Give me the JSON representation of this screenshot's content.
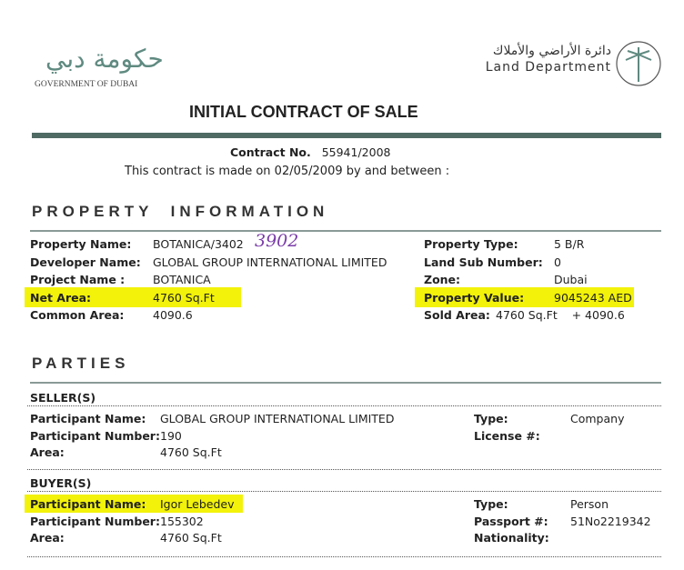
{
  "header": {
    "left_logo_text": "GOVERNMENT OF DUBAI",
    "left_logo_arabic": "حكومة دبي",
    "right_logo_arabic": "دائرة الأراضي والأملاك",
    "right_logo_text": "Land Department",
    "title": "INITIAL CONTRACT OF SALE"
  },
  "contract": {
    "no_label": "Contract No.",
    "no_value": "55941/2008",
    "intro": "This contract is made on 02/05/2009 by and between :"
  },
  "property": {
    "heading": "PROPERTY  INFORMATION",
    "left": [
      {
        "label": "Property Name:",
        "value": "BOTANICA/3402"
      },
      {
        "label": "Developer Name:",
        "value": "GLOBAL GROUP INTERNATIONAL LIMITED"
      },
      {
        "label": "Project Name :",
        "value": "BOTANICA"
      },
      {
        "label": "Net Area:",
        "value": "4760 Sq.Ft"
      },
      {
        "label": "Common Area:",
        "value": "4090.6"
      }
    ],
    "right": [
      {
        "label": "Property Type:",
        "value": "5 B/R"
      },
      {
        "label": "Land Sub Number:",
        "value": "0"
      },
      {
        "label": "Zone:",
        "value": "Dubai"
      },
      {
        "label": "Property Value:",
        "value": "9045243 AED"
      },
      {
        "label": "Sold Area:",
        "value": "4760 Sq.Ft    + 4090.6"
      }
    ],
    "handwritten_note": "3902"
  },
  "parties": {
    "heading": "PARTIES",
    "seller": {
      "heading": "SELLER(S)",
      "left": [
        {
          "label": "Participant Name:",
          "value": "GLOBAL GROUP INTERNATIONAL LIMITED"
        },
        {
          "label": "Participant Number:",
          "value": "190"
        },
        {
          "label": "Area:",
          "value": "4760 Sq.Ft"
        }
      ],
      "right": [
        {
          "label": "Type:",
          "value": "Company"
        },
        {
          "label": "License #:",
          "value": ""
        }
      ]
    },
    "buyer": {
      "heading": "BUYER(S)",
      "left": [
        {
          "label": "Participant Name:",
          "value": "Igor Lebedev"
        },
        {
          "label": "Participant Number:",
          "value": "155302"
        },
        {
          "label": "Area:",
          "value": "4760 Sq.Ft"
        }
      ],
      "right": [
        {
          "label": "Type:",
          "value": "Person"
        },
        {
          "label": "Passport #:",
          "value": "51No2219342"
        },
        {
          "label": "Nationality:",
          "value": ""
        }
      ]
    }
  },
  "colors": {
    "highlight": "#f2f20a",
    "rule": "#4f6a63",
    "logo": "#5f8a80"
  }
}
